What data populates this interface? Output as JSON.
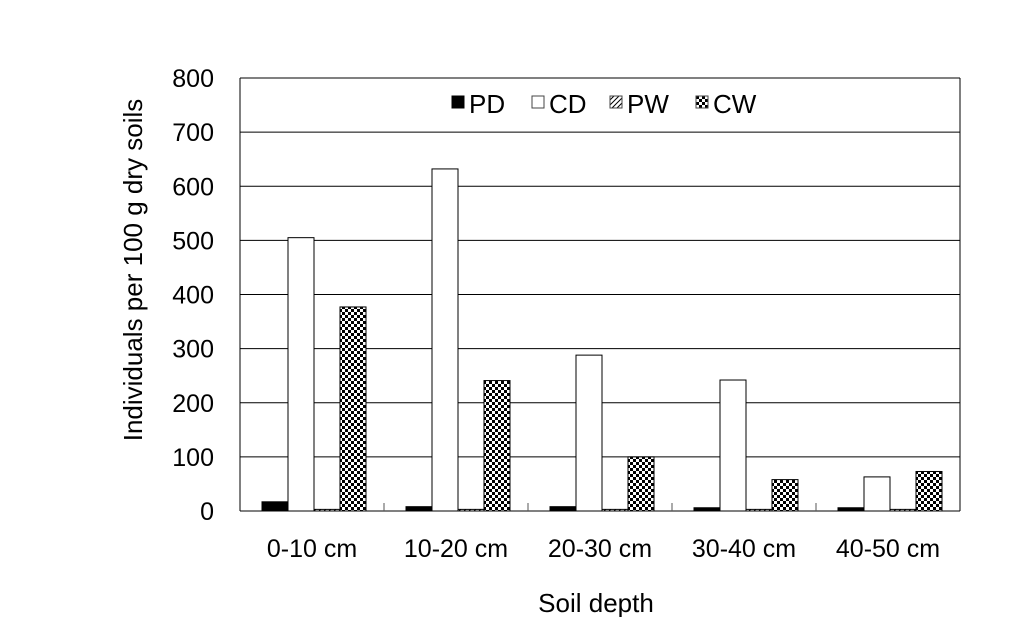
{
  "chart_data": {
    "type": "bar",
    "title": "",
    "xlabel": "Soil depth",
    "ylabel": "Individuals per 100 g dry soils",
    "categories": [
      "0-10 cm",
      "10-20 cm",
      "20-30 cm",
      "30-40 cm",
      "40-50 cm"
    ],
    "ylim": [
      0,
      800
    ],
    "yticks": [
      "0",
      "100",
      "200",
      "300",
      "400",
      "500",
      "600",
      "700",
      "800"
    ],
    "grid": true,
    "legend_position": "top-center",
    "series": [
      {
        "name": "PD",
        "fill": "solid",
        "color": "#000000",
        "values": [
          17,
          8,
          8,
          6,
          6
        ]
      },
      {
        "name": "CD",
        "fill": "empty",
        "color": "#ffffff",
        "values": [
          505,
          632,
          288,
          242,
          63
        ]
      },
      {
        "name": "PW",
        "fill": "hatched",
        "color": "#000000",
        "values": [
          3,
          3,
          3,
          3,
          3
        ]
      },
      {
        "name": "CW",
        "fill": "checkered",
        "color": "#000000",
        "values": [
          377,
          241,
          100,
          58,
          73
        ]
      }
    ]
  }
}
